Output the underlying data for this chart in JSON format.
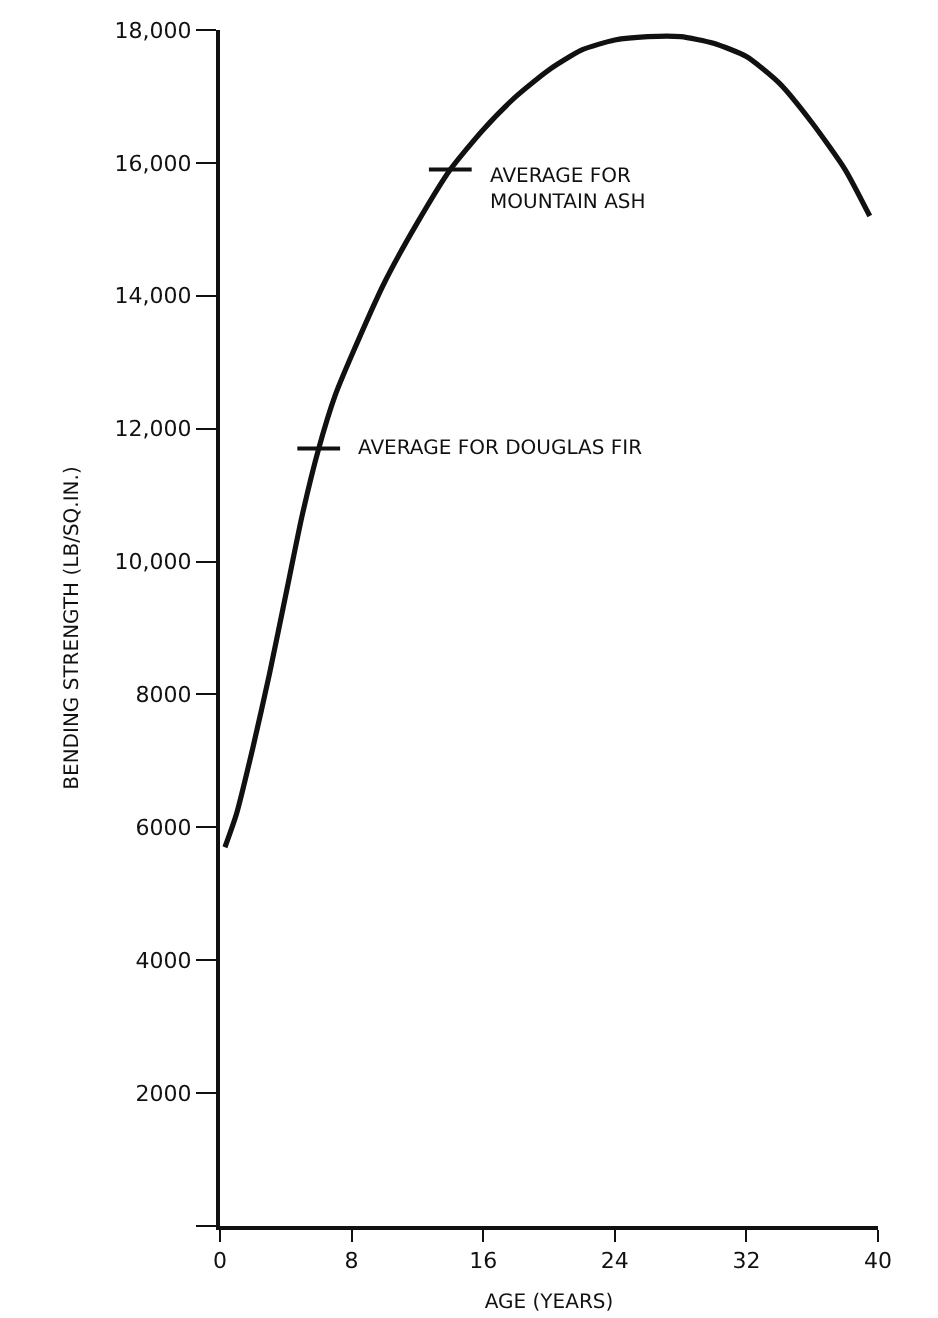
{
  "chart_data": {
    "type": "line",
    "xlabel": "AGE (YEARS)",
    "ylabel": "BENDING STRENGTH (LB/SQ.IN.)",
    "x": [
      0.3,
      1,
      2,
      3,
      4,
      5,
      6,
      7,
      8,
      10,
      12,
      14,
      16,
      18,
      20,
      22,
      24,
      26,
      28,
      30,
      32,
      34,
      36,
      38,
      39.5
    ],
    "series": [
      {
        "color": "#111111",
        "values": [
          5700,
          6200,
          7200,
          8300,
          9500,
          10700,
          11700,
          12500,
          13100,
          14200,
          15100,
          15900,
          16500,
          17000,
          17400,
          17700,
          17850,
          17900,
          17900,
          17800,
          17600,
          17200,
          16600,
          15900,
          15200
        ]
      }
    ],
    "xlim": [
      0,
      40
    ],
    "xticks": [
      0,
      8,
      16,
      24,
      32,
      40
    ],
    "ylim": [
      0,
      18000
    ],
    "yticks": [
      {
        "value": 0,
        "label": null
      },
      {
        "value": 2000,
        "label": "2000"
      },
      {
        "value": 4000,
        "label": "4000"
      },
      {
        "value": 6000,
        "label": "6000"
      },
      {
        "value": 8000,
        "label": "8000"
      },
      {
        "value": 10000,
        "label": "10,000"
      },
      {
        "value": 12000,
        "label": "12,000"
      },
      {
        "value": 14000,
        "label": "14,000"
      },
      {
        "value": 16000,
        "label": "16,000"
      },
      {
        "value": 18000,
        "label": "18,000"
      }
    ],
    "annotations": [
      {
        "text": "AVERAGE FOR\nMOUNTAIN ASH",
        "x": 14,
        "y": 15900
      },
      {
        "text": "AVERAGE FOR DOUGLAS FIR",
        "x": 6,
        "y": 11700
      }
    ],
    "grid": false,
    "marker": "none",
    "line_style": "solid"
  }
}
